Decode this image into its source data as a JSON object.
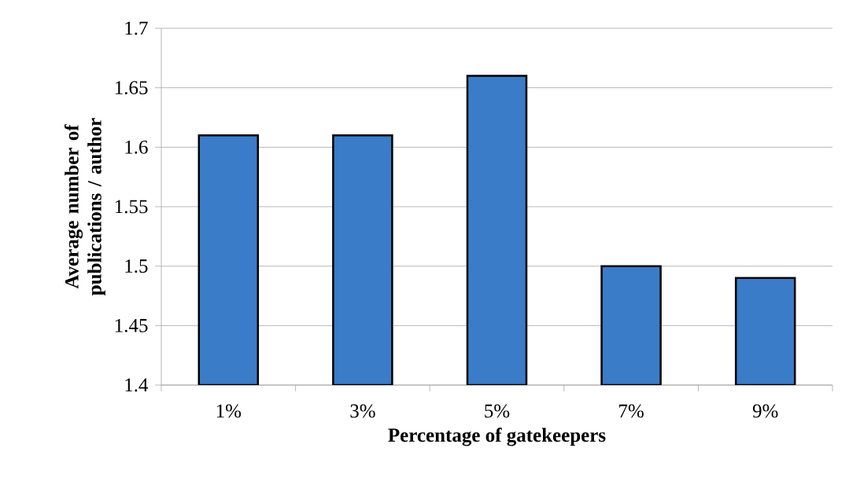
{
  "chart_data": {
    "type": "bar",
    "xlabel": "Percentage of gatekeepers",
    "ylabel": "Average number of publications / author",
    "categories": [
      "1%",
      "3%",
      "5%",
      "7%",
      "9%"
    ],
    "values": [
      1.61,
      1.61,
      1.66,
      1.5,
      1.49
    ],
    "color": "#3a7cc8",
    "ylim": [
      1.4,
      1.7
    ],
    "yticks": [
      1.4,
      1.45,
      1.5,
      1.55,
      1.6,
      1.65,
      1.7
    ],
    "grid": "y"
  }
}
